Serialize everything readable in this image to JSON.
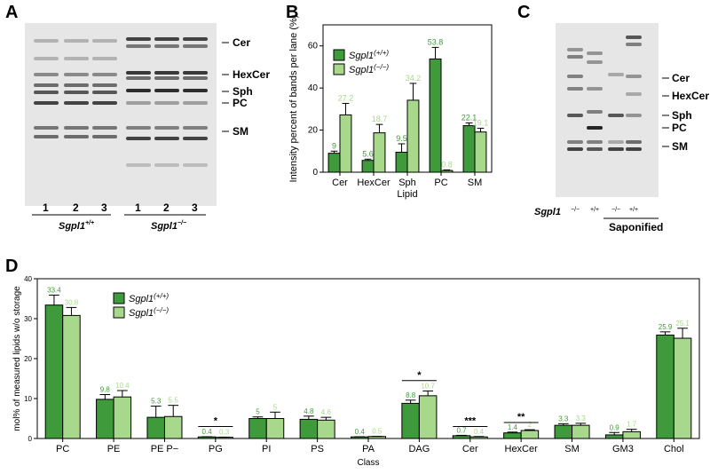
{
  "panels": {
    "a": {
      "letter": "A",
      "lanes": [
        "1",
        "2",
        "3",
        "1",
        "2",
        "3"
      ],
      "group_labels": [
        {
          "gene": "Sgpl1",
          "sup": "+/+"
        },
        {
          "gene": "Sgpl1",
          "sup": "−/−"
        }
      ],
      "band_labels": [
        "Cer",
        "HexCer",
        "Sph",
        "PC",
        "SM"
      ]
    },
    "b": {
      "letter": "B",
      "legend": [
        {
          "gene": "Sgpl1",
          "sup": "(+/+)",
          "color": "#3f9a3b"
        },
        {
          "gene": "Sgpl1",
          "sup": "(−/−)",
          "color": "#a8d88c"
        }
      ]
    },
    "c": {
      "letter": "C",
      "band_labels": [
        "Cer",
        "HexCer",
        "Sph",
        "PC",
        "SM"
      ],
      "row_label": "Sgpl1",
      "genotypes": [
        "−/−",
        "+/+",
        "−/−",
        "+/+"
      ],
      "saponified_label": "Saponified"
    },
    "d": {
      "letter": "D",
      "legend": [
        {
          "gene": "Sgpl1",
          "sup": "(+/+)",
          "color": "#3f9a3b"
        },
        {
          "gene": "Sgpl1",
          "sup": "(−/−)",
          "color": "#a8d88c"
        }
      ]
    }
  },
  "chart_data": [
    {
      "type": "bar",
      "panel": "B",
      "xlabel": "Lipid",
      "ylabel": "Intensity percent of bands per lane (%)",
      "categories": [
        "Cer",
        "HexCer",
        "Sph",
        "PC",
        "SM"
      ],
      "ylim": [
        0,
        70
      ],
      "yticks": [
        0,
        20,
        40,
        60
      ],
      "series": [
        {
          "name": "Sgpl1(+/+)",
          "color": "#3f9a3b",
          "values": [
            9,
            5.6,
            9.5,
            53.8,
            22.1
          ],
          "labels": [
            "9",
            "5.6",
            "9.5",
            "53.8",
            "22.1"
          ],
          "errors": [
            1,
            0.6,
            4,
            5.5,
            1.3
          ]
        },
        {
          "name": "Sgpl1(−/−)",
          "color": "#a8d88c",
          "values": [
            27.2,
            18.7,
            34.2,
            0.8,
            19.1
          ],
          "labels": [
            "27.2",
            "18.7",
            "34.2",
            "0.8",
            "19.1"
          ],
          "errors": [
            5.5,
            4,
            8,
            0.3,
            1.8
          ]
        }
      ]
    },
    {
      "type": "bar",
      "panel": "D",
      "xlabel": "Class",
      "ylabel": "mol% of measured lipids w/o storage",
      "categories": [
        "PC",
        "PE",
        "PE P−",
        "PG",
        "PI",
        "PS",
        "PA",
        "DAG",
        "Cer",
        "HexCer",
        "SM",
        "GM3",
        "Chol"
      ],
      "ylim": [
        0,
        40
      ],
      "yticks": [
        0,
        10,
        20,
        30,
        40
      ],
      "series": [
        {
          "name": "Sgpl1(+/+)",
          "color": "#3f9a3b",
          "values": [
            33.4,
            9.8,
            5.3,
            0.4,
            5,
            4.8,
            0.4,
            8.8,
            0.7,
            1.4,
            3.3,
            0.9,
            25.9
          ],
          "labels": [
            "33.4",
            "9.8",
            "5.3",
            "0.4",
            "5",
            "4.8",
            "0.4",
            "8.8",
            "0.7",
            "1.4",
            "3.3",
            "0.9",
            "25.9"
          ],
          "errors": [
            2.5,
            1.2,
            2.8,
            0.05,
            0.4,
            0.8,
            0.05,
            0.8,
            0.1,
            0.2,
            0.4,
            0.6,
            0.8
          ]
        },
        {
          "name": "Sgpl1(−/−)",
          "color": "#a8d88c",
          "values": [
            30.8,
            10.4,
            5.5,
            0.3,
            5,
            4.6,
            0.5,
            10.7,
            0.4,
            2,
            3.3,
            1.7,
            25.1
          ],
          "labels": [
            "30.8",
            "10.4",
            "5.5",
            "0.3",
            "5",
            "4.6",
            "0.5",
            "10.7",
            "0.4",
            "2",
            "3.3",
            "1.7",
            "25.1"
          ],
          "errors": [
            2,
            1.6,
            2.8,
            0.05,
            1.6,
            0.7,
            0.05,
            1.2,
            0.1,
            0.2,
            0.5,
            0.6,
            2.5
          ]
        }
      ],
      "significance": [
        {
          "category": "PG",
          "label": "*",
          "y": 3
        },
        {
          "category": "DAG",
          "label": "*",
          "y": 14.5
        },
        {
          "category": "Cer",
          "label": "***",
          "y": 3
        },
        {
          "category": "HexCer",
          "label": "**",
          "y": 4
        }
      ]
    }
  ]
}
